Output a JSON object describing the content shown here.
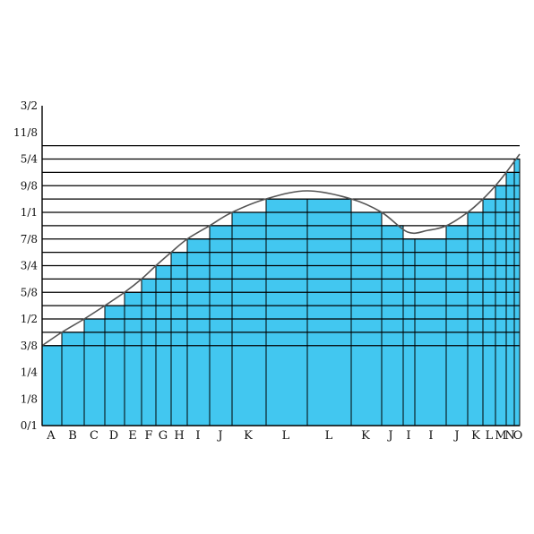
{
  "y_axis": {
    "labels": [
      "0/1",
      "1/8",
      "1/4",
      "3/8",
      "1/2",
      "5/8",
      "3/4",
      "7/8",
      "1/1",
      "9/8",
      "5/4",
      "11/8",
      "3/2"
    ],
    "min": 0,
    "max": 1.5
  },
  "x_labels": [
    "A",
    "B",
    "C",
    "D",
    "E",
    "F",
    "G",
    "H",
    "I",
    "J",
    "K",
    "L",
    "L",
    "K",
    "J",
    "I",
    "I",
    "J",
    "K",
    "L",
    "M",
    "N",
    "O"
  ],
  "levels": [
    0.375,
    0.4375,
    0.5,
    0.5625,
    0.625,
    0.6875,
    0.75,
    0.8125,
    0.875,
    0.9375,
    1.0,
    1.0625,
    1.125,
    1.1875,
    1.25,
    1.3125
  ],
  "bar_heights": [
    0.375,
    0.4375,
    0.5,
    0.5625,
    0.625,
    0.6875,
    0.75,
    0.8125,
    0.875,
    0.9375,
    1.0,
    1.0625,
    1.0625,
    1.0,
    0.9375,
    0.875,
    0.875,
    0.9375,
    1.0,
    1.0625,
    1.125,
    1.1875,
    1.25
  ],
  "colors": {
    "bar_fill": "#42c7f0",
    "line": "#000000",
    "curve": "#555555"
  }
}
